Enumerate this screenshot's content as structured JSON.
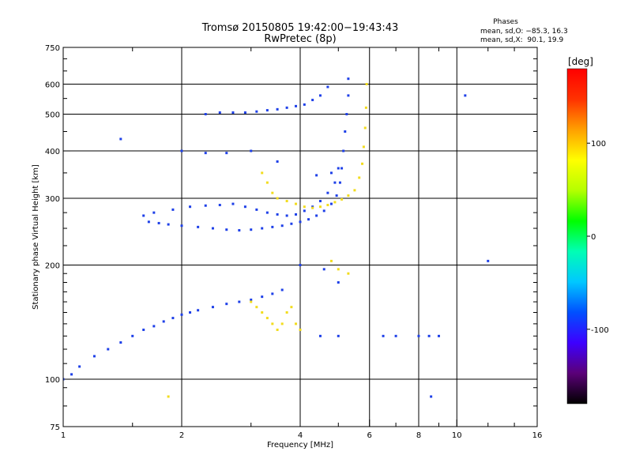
{
  "chart_data": {
    "type": "scatter",
    "title": "Tromsø 20150805 19:42:00−19:43:43",
    "subtitle": "RwPretec (8p)",
    "xlabel": "Frequency [MHz]",
    "ylabel": "Stationary phase Virtual Height [km]",
    "x_scale": "log",
    "y_scale": "log",
    "xlim": [
      1,
      16
    ],
    "ylim": [
      75,
      750
    ],
    "x_ticks": [
      1,
      2,
      4,
      6,
      8,
      10,
      16
    ],
    "x_tick_labels": [
      "1",
      "2",
      "4",
      "6",
      "8",
      "10",
      "16"
    ],
    "x_minor_ticks": [
      1.5,
      3,
      5,
      7,
      9,
      12,
      14
    ],
    "x_gridlines": [
      2,
      4,
      6,
      8,
      10
    ],
    "y_ticks": [
      75,
      100,
      200,
      300,
      400,
      500,
      600,
      750
    ],
    "y_tick_labels": [
      "75",
      "100",
      "200",
      "300",
      "400",
      "500",
      "600",
      "750"
    ],
    "y_minor_ticks": [
      85,
      95,
      110,
      120,
      130,
      140,
      150,
      160,
      170,
      180,
      190,
      225,
      250,
      275,
      350,
      450,
      550,
      650,
      700
    ],
    "y_gridlines": [
      100,
      200,
      300,
      400,
      500,
      600
    ],
    "phase_box": {
      "title": "Phases",
      "line_o": "mean, sd,O: −85.3, 16.3",
      "line_x": "mean, sd,X:  90.1, 19.9"
    },
    "colorbar": {
      "unit": "[deg]",
      "range": [
        -180,
        180
      ],
      "ticks": [
        100,
        0,
        -100
      ],
      "tick_labels": [
        "100",
        "0",
        "-100"
      ],
      "colors": [
        "#000000",
        "#5b0078",
        "#3d00ff",
        "#0050ff",
        "#00c8ff",
        "#00ffb4",
        "#00ff00",
        "#b4ff00",
        "#ffff00",
        "#ffa000",
        "#ff3200",
        "#ff0000"
      ]
    },
    "o_mode_color": "#1e40e8",
    "x_mode_color": "#f2dc1e",
    "series": [
      {
        "mode": "O",
        "note": "F2 trace lower branch",
        "points": [
          [
            1.65,
            260
          ],
          [
            1.75,
            258
          ],
          [
            1.85,
            256
          ],
          [
            2.0,
            254
          ],
          [
            2.2,
            252
          ],
          [
            2.4,
            250
          ],
          [
            2.6,
            248
          ],
          [
            2.8,
            247
          ],
          [
            3.0,
            248
          ],
          [
            3.2,
            250
          ],
          [
            3.4,
            252
          ],
          [
            3.6,
            254
          ],
          [
            3.8,
            257
          ],
          [
            4.0,
            260
          ],
          [
            4.2,
            264
          ],
          [
            4.4,
            270
          ],
          [
            4.6,
            278
          ],
          [
            4.8,
            290
          ],
          [
            4.95,
            305
          ],
          [
            5.05,
            330
          ],
          [
            5.1,
            360
          ],
          [
            5.15,
            400
          ],
          [
            5.2,
            450
          ],
          [
            5.25,
            500
          ],
          [
            5.3,
            560
          ],
          [
            5.3,
            620
          ]
        ]
      },
      {
        "mode": "O",
        "note": "F1/oblique trace",
        "points": [
          [
            1.6,
            270
          ],
          [
            1.7,
            275
          ],
          [
            1.9,
            280
          ],
          [
            2.1,
            285
          ],
          [
            2.3,
            287
          ],
          [
            2.5,
            288
          ],
          [
            2.7,
            290
          ],
          [
            2.9,
            285
          ],
          [
            3.1,
            280
          ],
          [
            3.3,
            275
          ],
          [
            3.5,
            272
          ],
          [
            3.7,
            270
          ],
          [
            3.9,
            272
          ],
          [
            4.1,
            278
          ],
          [
            4.3,
            285
          ],
          [
            4.5,
            295
          ],
          [
            4.7,
            310
          ],
          [
            4.9,
            330
          ],
          [
            5.0,
            360
          ]
        ]
      },
      {
        "mode": "O",
        "note": "multi-hop trace",
        "points": [
          [
            2.3,
            500
          ],
          [
            2.5,
            505
          ],
          [
            2.7,
            505
          ],
          [
            2.9,
            505
          ],
          [
            3.1,
            508
          ],
          [
            3.3,
            512
          ],
          [
            3.5,
            515
          ],
          [
            3.7,
            520
          ],
          [
            3.9,
            525
          ],
          [
            4.1,
            530
          ],
          [
            4.3,
            545
          ],
          [
            4.5,
            560
          ],
          [
            4.7,
            590
          ]
        ]
      },
      {
        "mode": "O",
        "note": "lower diffuse cloud",
        "points": [
          [
            1.0,
            100
          ],
          [
            1.05,
            103
          ],
          [
            1.1,
            108
          ],
          [
            1.2,
            115
          ],
          [
            1.3,
            120
          ],
          [
            1.4,
            125
          ],
          [
            1.5,
            130
          ],
          [
            1.6,
            135
          ],
          [
            1.7,
            138
          ],
          [
            1.8,
            142
          ],
          [
            1.9,
            145
          ],
          [
            2.0,
            148
          ],
          [
            2.1,
            150
          ],
          [
            2.2,
            152
          ],
          [
            2.4,
            155
          ],
          [
            2.6,
            158
          ],
          [
            2.8,
            160
          ],
          [
            3.0,
            162
          ],
          [
            3.2,
            165
          ],
          [
            3.4,
            168
          ],
          [
            3.6,
            172
          ]
        ]
      },
      {
        "mode": "O",
        "note": "sporadic echoes",
        "points": [
          [
            1.4,
            430
          ],
          [
            2.0,
            400
          ],
          [
            2.3,
            395
          ],
          [
            2.6,
            395
          ],
          [
            3.0,
            400
          ],
          [
            3.5,
            375
          ],
          [
            4.4,
            345
          ],
          [
            4.8,
            350
          ],
          [
            4.0,
            200
          ],
          [
            4.6,
            195
          ],
          [
            5.0,
            180
          ],
          [
            4.5,
            130
          ],
          [
            5.0,
            130
          ],
          [
            6.5,
            130
          ],
          [
            7.0,
            130
          ],
          [
            8.0,
            130
          ],
          [
            8.5,
            130
          ],
          [
            9.0,
            130
          ],
          [
            8.6,
            90
          ],
          [
            10.5,
            560
          ],
          [
            12.0,
            205
          ]
        ]
      },
      {
        "mode": "X",
        "note": "X-mode trace",
        "points": [
          [
            3.2,
            350
          ],
          [
            3.3,
            330
          ],
          [
            3.4,
            310
          ],
          [
            3.5,
            300
          ],
          [
            3.7,
            295
          ],
          [
            3.9,
            290
          ],
          [
            4.1,
            285
          ],
          [
            4.3,
            283
          ],
          [
            4.5,
            285
          ],
          [
            4.7,
            288
          ],
          [
            4.9,
            293
          ],
          [
            5.1,
            298
          ],
          [
            5.3,
            305
          ],
          [
            5.5,
            315
          ],
          [
            5.65,
            340
          ],
          [
            5.75,
            370
          ],
          [
            5.8,
            410
          ],
          [
            5.85,
            460
          ],
          [
            5.88,
            520
          ],
          [
            5.9,
            600
          ]
        ]
      },
      {
        "mode": "X",
        "note": "X-mode lower cloud",
        "points": [
          [
            3.0,
            160
          ],
          [
            3.1,
            155
          ],
          [
            3.2,
            150
          ],
          [
            3.3,
            145
          ],
          [
            3.4,
            140
          ],
          [
            3.5,
            135
          ],
          [
            3.6,
            140
          ],
          [
            3.7,
            150
          ],
          [
            3.8,
            155
          ],
          [
            3.9,
            140
          ],
          [
            4.0,
            135
          ],
          [
            4.8,
            205
          ],
          [
            5.0,
            195
          ],
          [
            5.3,
            190
          ],
          [
            1.85,
            90
          ]
        ]
      }
    ]
  }
}
